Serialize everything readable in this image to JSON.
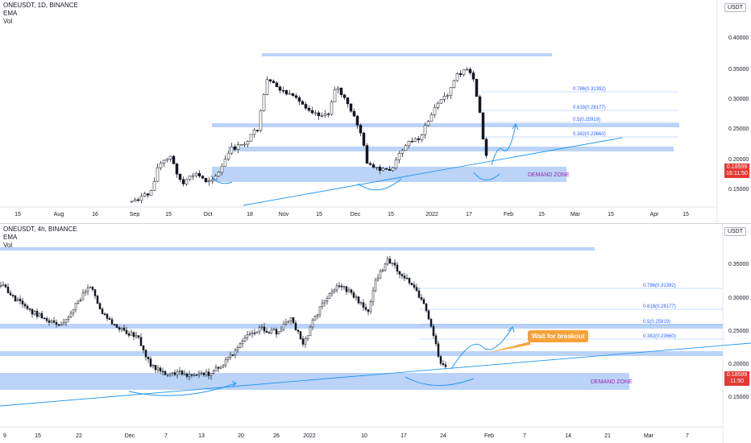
{
  "charts": [
    {
      "symbol_line": "ONEUSDT, 1D, BINANCE",
      "indicators": [
        "EMA",
        "Vol"
      ],
      "scale_label": "USDT",
      "price_ticks": [
        "0.40000",
        "0.35000",
        "0.30000",
        "0.25000",
        "0.20000",
        "0.15000"
      ],
      "time_ticks": [
        "15",
        "Aug",
        "16",
        "Sep",
        "15",
        "Oct",
        "18",
        "Nov",
        "15",
        "Dec",
        "15",
        "2022",
        "17",
        "Feb",
        "15",
        "Mar",
        "15",
        "Apr",
        "15"
      ],
      "last_price": "0.18599",
      "countdown": "16:11:50",
      "fib_levels": [
        "0.786(0.31392)",
        "0.618(0.28177)",
        "0.5(0.25919)",
        "0.382(0.23660)"
      ],
      "zone_label": "DEMAND ZONE"
    },
    {
      "symbol_line": "ONEUSDT, 4h, BINANCE",
      "indicators": [
        "EMA",
        "Vol"
      ],
      "scale_label": "USDT",
      "price_ticks": [
        "0.35000",
        "0.30000",
        "0.25000",
        "0.20000",
        "0.15000"
      ],
      "time_ticks": [
        "9",
        "15",
        "22",
        "Dec",
        "7",
        "13",
        "20",
        "26",
        "2022",
        "10",
        "17",
        "24",
        "Feb",
        "7",
        "14",
        "21",
        "Mar",
        "7"
      ],
      "last_price": "0.18599",
      "countdown": "11:50",
      "fib_levels": [
        "0.786(0.31392)",
        "0.618(0.28177)",
        "0.5(0.25919)",
        "0.382(0.23660)"
      ],
      "zone_label": "DEMAND ZONE",
      "callout": "Wait for breakout"
    }
  ],
  "colors": {
    "up": "#26a69a",
    "down": "#ef5350",
    "candle_body": "#131722",
    "zone_fill": "#bbd3f7",
    "trend": "#2196f3",
    "fib_line": "#90bff9",
    "zone_text": "#9c27b0",
    "price_tag": "#e53935",
    "callout": "#f7a13a"
  }
}
